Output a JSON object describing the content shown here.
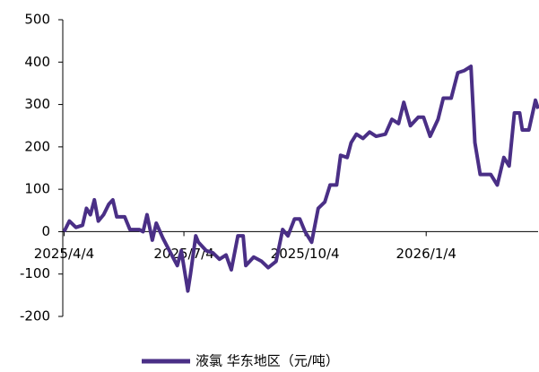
{
  "chart_data": {
    "type": "line",
    "x": [
      "2025/4/4",
      "2025/4/8",
      "2025/4/13",
      "2025/4/18",
      "2025/4/21",
      "2025/4/24",
      "2025/4/27",
      "2025/4/30",
      "2025/5/4",
      "2025/5/8",
      "2025/5/11",
      "2025/5/14",
      "2025/5/20",
      "2025/5/24",
      "2025/5/31",
      "2025/6/3",
      "2025/6/6",
      "2025/6/10",
      "2025/6/13",
      "2025/6/18",
      "2025/6/23",
      "2025/6/29",
      "2025/7/2",
      "2025/7/7",
      "2025/7/9",
      "2025/7/13",
      "2025/7/15",
      "2025/7/21",
      "2025/7/26",
      "2025/7/31",
      "2025/8/5",
      "2025/8/9",
      "2025/8/14",
      "2025/8/18",
      "2025/8/20",
      "2025/8/26",
      "2025/9/1",
      "2025/9/6",
      "2025/9/12",
      "2025/9/17",
      "2025/9/21",
      "2025/9/26",
      "2025/9/30",
      "2025/10/4",
      "2025/10/9",
      "2025/10/14",
      "2025/10/19",
      "2025/10/23",
      "2025/10/28",
      "2025/10/31",
      "2025/11/5",
      "2025/11/8",
      "2025/11/12",
      "2025/11/17",
      "2025/11/22",
      "2025/11/27",
      "2025/12/4",
      "2025/12/9",
      "2025/12/14",
      "2025/12/18",
      "2025/12/23",
      "2025/12/29",
      "2026/1/2",
      "2026/1/7",
      "2026/1/13",
      "2026/1/17",
      "2026/1/23",
      "2026/1/28",
      "2026/2/2",
      "2026/2/7",
      "2026/2/10",
      "2026/2/14",
      "2026/2/22",
      "2026/2/27",
      "2026/3/4",
      "2026/3/8",
      "2026/3/12",
      "2026/3/16",
      "2026/3/18",
      "2026/3/23",
      "2026/3/28",
      "2026/3/30"
    ],
    "series": [
      {
        "name": "液氯 华东地区（元/吨）",
        "color": "#4a2f86",
        "values": [
          0,
          25,
          10,
          15,
          55,
          40,
          75,
          25,
          40,
          65,
          75,
          35,
          35,
          5,
          5,
          0,
          40,
          -20,
          20,
          -15,
          -45,
          -80,
          -45,
          -140,
          -100,
          -10,
          -25,
          -45,
          -50,
          -65,
          -55,
          -90,
          -10,
          -10,
          -80,
          -60,
          -70,
          -85,
          -70,
          5,
          -10,
          30,
          30,
          0,
          -25,
          55,
          70,
          110,
          110,
          180,
          175,
          210,
          230,
          220,
          235,
          225,
          230,
          265,
          255,
          305,
          250,
          270,
          270,
          225,
          265,
          315,
          315,
          375,
          380,
          390,
          210,
          135,
          135,
          110,
          175,
          155,
          280,
          280,
          240,
          240,
          310,
          290
        ]
      }
    ],
    "xlim": [
      "2025/4/3",
      "2026/3/30"
    ],
    "xticks": [
      "2025/4/4",
      "2025/7/4",
      "2025/10/4",
      "2026/1/4"
    ],
    "ylim": [
      -200,
      500
    ],
    "yticks": [
      -200,
      -100,
      0,
      100,
      200,
      300,
      400,
      500
    ],
    "legend": "bottom"
  }
}
